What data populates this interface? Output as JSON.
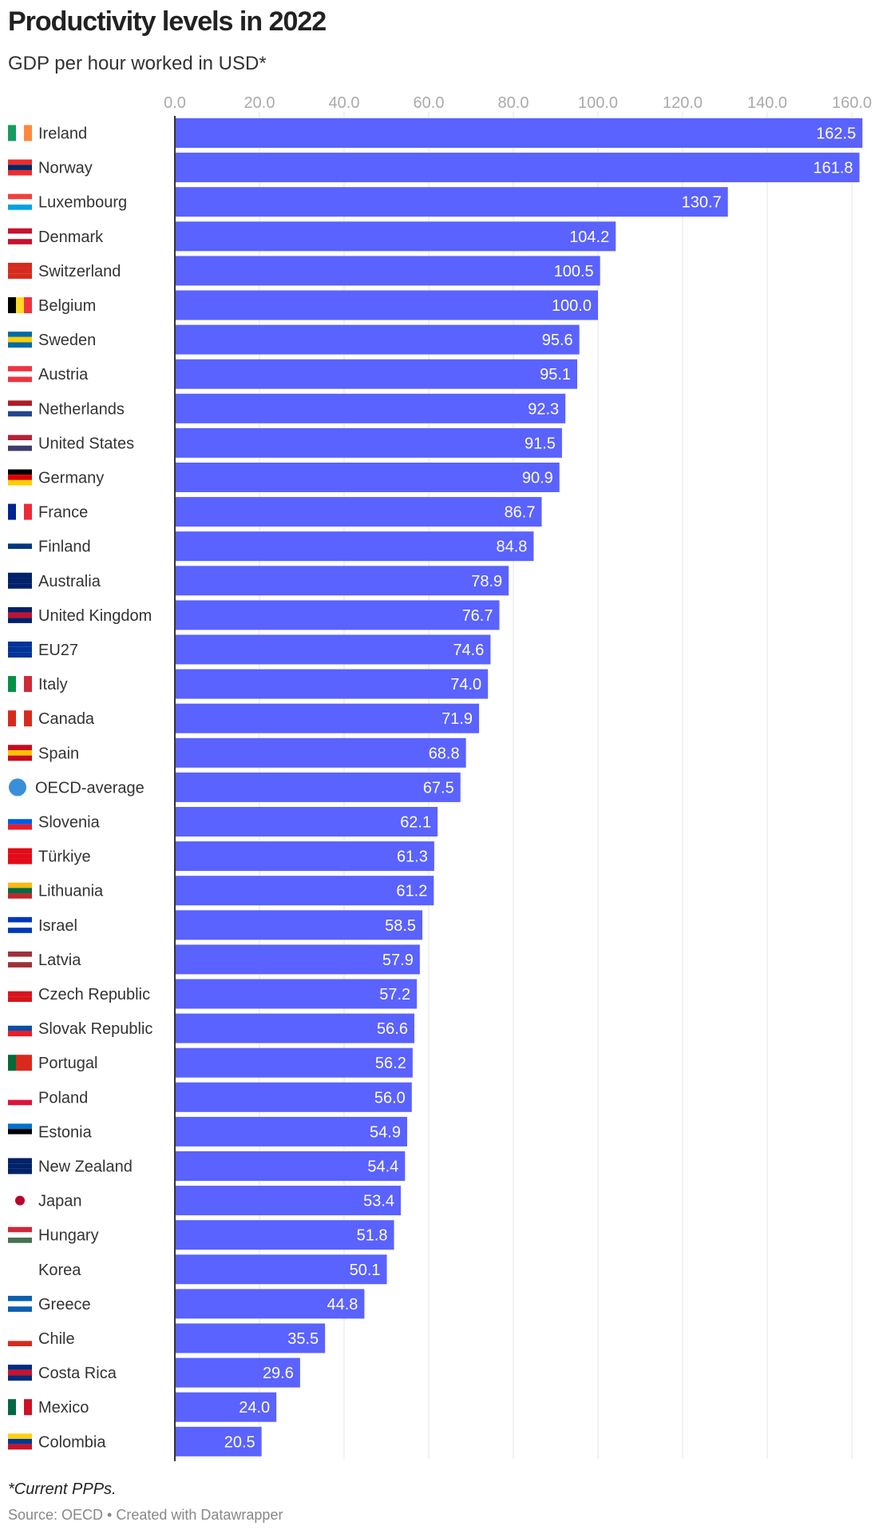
{
  "title": "Productivity levels in 2022",
  "subtitle": "GDP per hour worked in USD*",
  "footnote": "*Current PPPs.",
  "source": "Source: OECD • Created with Datawrapper",
  "colors": {
    "bar": "#5a62ff",
    "grid": "#e5e5e5",
    "tick": "#aaaaaa"
  },
  "chart_data": {
    "type": "bar",
    "orientation": "horizontal",
    "xlim": [
      0,
      165
    ],
    "ticks": [
      "0.0",
      "20.0",
      "40.0",
      "60.0",
      "80.0",
      "100.0",
      "120.0",
      "140.0",
      "160.0"
    ],
    "tick_values": [
      0,
      20,
      40,
      60,
      80,
      100,
      120,
      140,
      160
    ],
    "grid": true,
    "categories": [
      "Ireland",
      "Norway",
      "Luxembourg",
      "Denmark",
      "Switzerland",
      "Belgium",
      "Sweden",
      "Austria",
      "Netherlands",
      "United States",
      "Germany",
      "France",
      "Finland",
      "Australia",
      "United Kingdom",
      "EU27",
      "Italy",
      "Canada",
      "Spain",
      "OECD-average",
      "Slovenia",
      "Türkiye",
      "Lithuania",
      "Israel",
      "Latvia",
      "Czech Republic",
      "Slovak Republic",
      "Portugal",
      "Poland",
      "Estonia",
      "New Zealand",
      "Japan",
      "Hungary",
      "Korea",
      "Greece",
      "Chile",
      "Costa Rica",
      "Mexico",
      "Colombia"
    ],
    "values": [
      162.5,
      161.8,
      130.7,
      104.2,
      100.5,
      100.0,
      95.6,
      95.1,
      92.3,
      91.5,
      90.9,
      86.7,
      84.8,
      78.9,
      76.7,
      74.6,
      74.0,
      71.9,
      68.8,
      67.5,
      62.1,
      61.3,
      61.2,
      58.5,
      57.9,
      57.2,
      56.6,
      56.2,
      56.0,
      54.9,
      54.4,
      53.4,
      51.8,
      50.1,
      44.8,
      35.5,
      29.6,
      24.0,
      20.5
    ],
    "labels": [
      "162.5",
      "161.8",
      "130.7",
      "104.2",
      "100.5",
      "100.0",
      "95.6",
      "95.1",
      "92.3",
      "91.5",
      "90.9",
      "86.7",
      "84.8",
      "78.9",
      "76.7",
      "74.6",
      "74.0",
      "71.9",
      "68.8",
      "67.5",
      "62.1",
      "61.3",
      "61.2",
      "58.5",
      "57.9",
      "57.2",
      "56.6",
      "56.2",
      "56.0",
      "54.9",
      "54.4",
      "53.4",
      "51.8",
      "50.1",
      "44.8",
      "35.5",
      "29.6",
      "24.0",
      "20.5"
    ],
    "flags": [
      {
        "d": "v",
        "c": [
          "#169b62",
          "#fff",
          "#ff883e"
        ]
      },
      {
        "d": "h",
        "c": [
          "#ef2b2d",
          "#002868",
          "#ef2b2d"
        ]
      },
      {
        "d": "h",
        "c": [
          "#ef413d",
          "#fff",
          "#00a3e0"
        ]
      },
      {
        "d": "h",
        "c": [
          "#c8102e",
          "#fff",
          "#c8102e"
        ]
      },
      {
        "d": "h",
        "c": [
          "#d52b1e",
          "#d52b1e",
          "#d52b1e"
        ]
      },
      {
        "d": "v",
        "c": [
          "#000",
          "#fdda24",
          "#ef3340"
        ]
      },
      {
        "d": "h",
        "c": [
          "#006aa7",
          "#fecc00",
          "#006aa7"
        ]
      },
      {
        "d": "h",
        "c": [
          "#ef3340",
          "#fff",
          "#ef3340"
        ]
      },
      {
        "d": "h",
        "c": [
          "#ae1c28",
          "#fff",
          "#21468b"
        ]
      },
      {
        "d": "h",
        "c": [
          "#b22234",
          "#fff",
          "#3c3b6e"
        ]
      },
      {
        "d": "h",
        "c": [
          "#000",
          "#dd0000",
          "#ffce00"
        ]
      },
      {
        "d": "v",
        "c": [
          "#002395",
          "#fff",
          "#ed2939"
        ]
      },
      {
        "d": "h",
        "c": [
          "#fff",
          "#003580",
          "#fff"
        ]
      },
      {
        "d": "h",
        "c": [
          "#012169",
          "#012169",
          "#012169"
        ]
      },
      {
        "d": "h",
        "c": [
          "#012169",
          "#c8102e",
          "#012169"
        ]
      },
      {
        "d": "h",
        "c": [
          "#003399",
          "#003399",
          "#003399"
        ]
      },
      {
        "d": "v",
        "c": [
          "#009246",
          "#fff",
          "#ce2b37"
        ]
      },
      {
        "d": "v",
        "c": [
          "#d52b1e",
          "#fff",
          "#d52b1e"
        ]
      },
      {
        "d": "h",
        "c": [
          "#c60b1e",
          "#ffc400",
          "#c60b1e"
        ]
      },
      {
        "d": "h",
        "c": [
          "#3a8fd9",
          "#3a8fd9",
          "#3a8fd9"
        ]
      },
      {
        "d": "h",
        "c": [
          "#fff",
          "#005ce6",
          "#ed1c24"
        ]
      },
      {
        "d": "h",
        "c": [
          "#e30a17",
          "#e30a17",
          "#e30a17"
        ]
      },
      {
        "d": "h",
        "c": [
          "#fdb913",
          "#006a44",
          "#c1272d"
        ]
      },
      {
        "d": "h",
        "c": [
          "#0038b8",
          "#fff",
          "#0038b8"
        ]
      },
      {
        "d": "h",
        "c": [
          "#9e3039",
          "#fff",
          "#9e3039"
        ]
      },
      {
        "d": "h",
        "c": [
          "#fff",
          "#d7141a",
          "#d7141a"
        ]
      },
      {
        "d": "h",
        "c": [
          "#fff",
          "#0b4ea2",
          "#ee1c25"
        ]
      },
      {
        "d": "v",
        "c": [
          "#046a38",
          "#da291c",
          "#da291c"
        ]
      },
      {
        "d": "h",
        "c": [
          "#fff",
          "#fff",
          "#dc143c"
        ]
      },
      {
        "d": "h",
        "c": [
          "#0072ce",
          "#000",
          "#fff"
        ]
      },
      {
        "d": "h",
        "c": [
          "#012169",
          "#012169",
          "#012169"
        ]
      },
      {
        "d": "h",
        "c": [
          "#fff",
          "#fff",
          "#fff"
        ]
      },
      {
        "d": "h",
        "c": [
          "#ce2939",
          "#fff",
          "#477050"
        ]
      },
      {
        "d": "h",
        "c": [
          "#fff",
          "#fff",
          "#fff"
        ]
      },
      {
        "d": "h",
        "c": [
          "#0d5eaf",
          "#fff",
          "#0d5eaf"
        ]
      },
      {
        "d": "h",
        "c": [
          "#fff",
          "#fff",
          "#d52b1e"
        ]
      },
      {
        "d": "h",
        "c": [
          "#002b7f",
          "#ce1126",
          "#002b7f"
        ]
      },
      {
        "d": "v",
        "c": [
          "#006847",
          "#fff",
          "#ce1126"
        ]
      },
      {
        "d": "h",
        "c": [
          "#fcd116",
          "#003893",
          "#ce1126"
        ]
      }
    ]
  }
}
